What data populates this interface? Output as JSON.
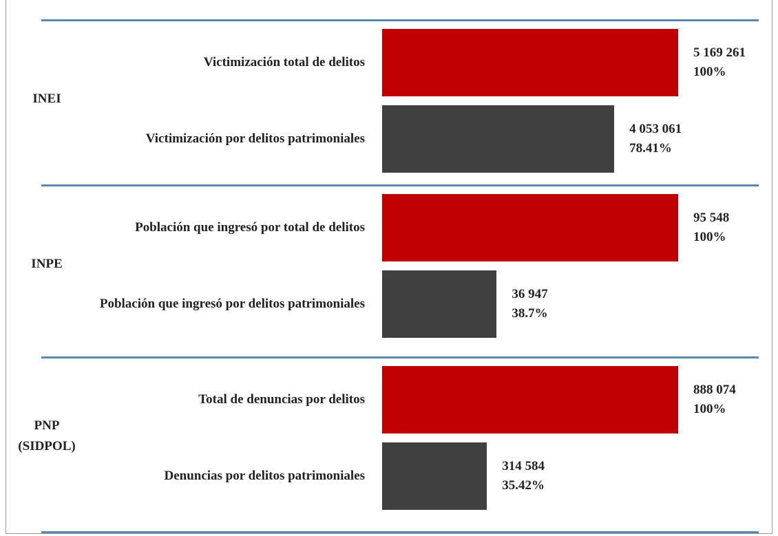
{
  "groups": [
    {
      "label": "INEI",
      "bars": [
        {
          "label": "Victimización total de delitos",
          "value": 5169261,
          "value_label": "5 169 261",
          "percent": 100,
          "percent_label": "100%",
          "color": "#c00000"
        },
        {
          "label": "Victimización por delitos patrimoniales",
          "value": 4053061,
          "value_label": "4 053 061",
          "percent": 78.41,
          "percent_label": "78.41%",
          "color": "#404040"
        }
      ]
    },
    {
      "label": "INPE",
      "bars": [
        {
          "label": "Población que ingresó por total de delitos",
          "value": 95548,
          "value_label": "95 548",
          "percent": 100,
          "percent_label": "100%",
          "color": "#c00000"
        },
        {
          "label": "Población que ingresó por delitos patrimoniales",
          "value": 36947,
          "value_label": "36 947",
          "percent": 38.7,
          "percent_label": "38.7%",
          "color": "#404040"
        }
      ]
    },
    {
      "label": "PNP (SIDPOL)",
      "bars": [
        {
          "label": "Total de denuncias por delitos",
          "value": 888074,
          "value_label": "888 074",
          "percent": 100,
          "percent_label": "100%",
          "color": "#c00000"
        },
        {
          "label": "Denuncias por delitos patrimoniales",
          "value": 314584,
          "value_label": "314 584",
          "percent": 35.42,
          "percent_label": "35.42%",
          "color": "#404040"
        }
      ]
    }
  ]
}
